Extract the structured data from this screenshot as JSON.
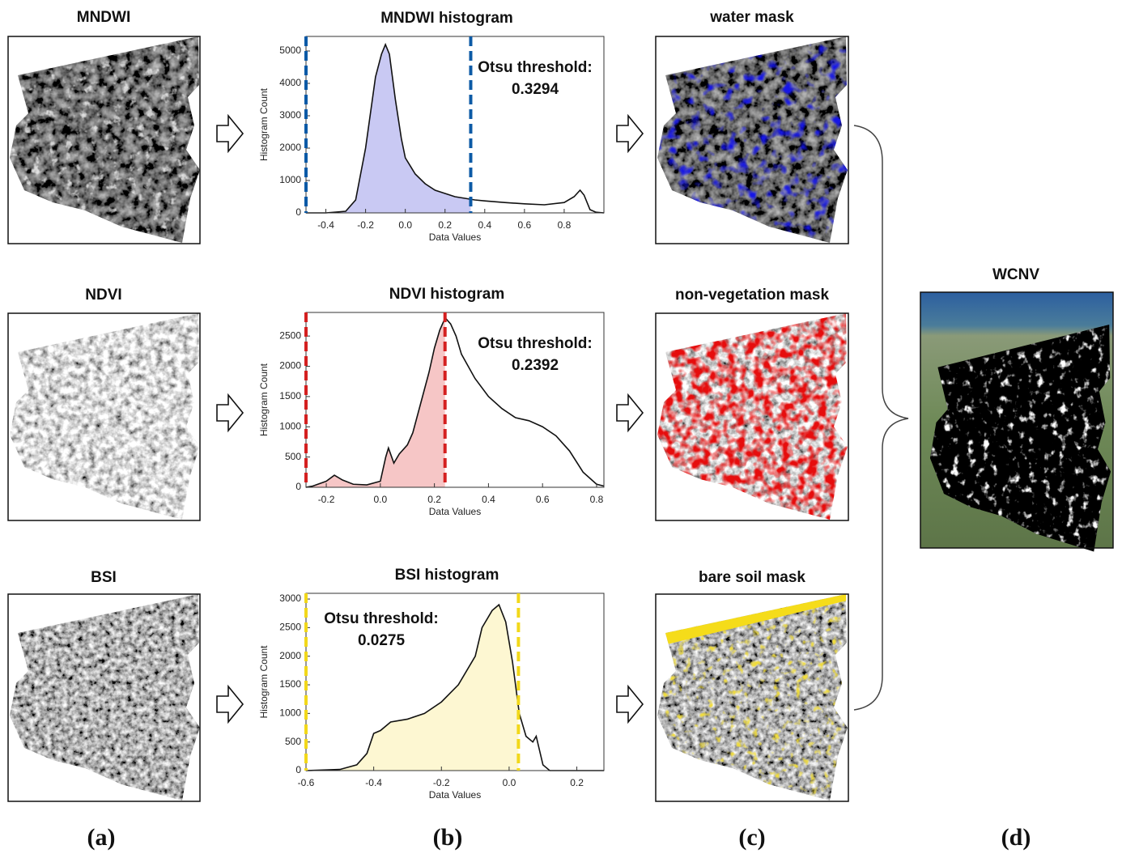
{
  "images": {
    "indices": [
      "MNDWI",
      "NDVI",
      "BSI"
    ],
    "masks": [
      "water mask",
      "non-vegetation mask",
      "bare soil mask"
    ],
    "result": "WCNV"
  },
  "panel_labels": [
    "(a)",
    "(b)",
    "(c)",
    "(d)"
  ],
  "chart_data": [
    {
      "type": "area",
      "title": "MNDWI histogram",
      "xlabel": "Data Values",
      "ylabel": "Histogram Count",
      "annotation": "Otsu threshold:",
      "threshold": 0.3294,
      "color": "#0c5aa6",
      "fill": "#c9c9f3",
      "x": [
        -0.5,
        -0.4,
        -0.3,
        -0.25,
        -0.2,
        -0.15,
        -0.12,
        -0.1,
        -0.08,
        -0.05,
        -0.02,
        0.0,
        0.05,
        0.1,
        0.15,
        0.2,
        0.25,
        0.3,
        0.35,
        0.4,
        0.5,
        0.6,
        0.7,
        0.8,
        0.85,
        0.88,
        0.9,
        0.93,
        0.96,
        1.0
      ],
      "values": [
        0,
        0,
        50,
        400,
        2000,
        4200,
        4900,
        5200,
        4900,
        3500,
        2300,
        1700,
        1200,
        900,
        700,
        600,
        500,
        450,
        400,
        370,
        320,
        280,
        250,
        320,
        500,
        700,
        550,
        100,
        20,
        0
      ],
      "xlim": [
        -0.5,
        1.0
      ],
      "ylim": [
        0,
        5450
      ],
      "xticks": [
        -0.4,
        -0.2,
        {
          "value": 0,
          "label": "0.0"
        },
        0.2,
        0.4,
        0.6,
        0.8
      ],
      "yticks": [
        0,
        1000,
        2000,
        3000,
        4000,
        5000
      ]
    },
    {
      "type": "area",
      "title": "NDVI histogram",
      "xlabel": "Data Values",
      "ylabel": "Histogram Count",
      "annotation": "Otsu threshold:",
      "threshold": 0.2392,
      "color": "#d42020",
      "fill": "#f6c6c6",
      "x": [
        -0.275,
        -0.25,
        -0.2,
        -0.17,
        -0.14,
        -0.1,
        -0.05,
        0.0,
        0.02,
        0.03,
        0.05,
        0.07,
        0.1,
        0.12,
        0.15,
        0.18,
        0.2,
        0.22,
        0.24,
        0.26,
        0.28,
        0.3,
        0.35,
        0.4,
        0.45,
        0.5,
        0.55,
        0.6,
        0.65,
        0.7,
        0.75,
        0.8,
        0.827
      ],
      "values": [
        0,
        20,
        100,
        200,
        120,
        50,
        40,
        100,
        500,
        650,
        400,
        550,
        700,
        900,
        1400,
        1900,
        2300,
        2600,
        2800,
        2700,
        2500,
        2200,
        1800,
        1500,
        1300,
        1150,
        1100,
        1000,
        850,
        600,
        250,
        50,
        20
      ],
      "xlim": [
        -0.275,
        0.827
      ],
      "ylim": [
        0,
        2890
      ],
      "xticks": [
        -0.2,
        {
          "value": 0,
          "label": "0.0"
        },
        0.2,
        0.4,
        0.6,
        0.8
      ],
      "yticks": [
        0,
        500,
        1000,
        1500,
        2000,
        2500
      ]
    },
    {
      "type": "area",
      "title": "BSI histogram",
      "xlabel": "Data Values",
      "ylabel": "Histogram Count",
      "annotation": "Otsu threshold:",
      "threshold": 0.0275,
      "color": "#f2d81a",
      "fill": "#fdf7d2",
      "x": [
        -0.6,
        -0.5,
        -0.45,
        -0.42,
        -0.4,
        -0.38,
        -0.35,
        -0.3,
        -0.25,
        -0.2,
        -0.15,
        -0.1,
        -0.08,
        -0.05,
        -0.03,
        -0.01,
        0.01,
        0.03,
        0.05,
        0.07,
        0.08,
        0.1,
        0.12,
        0.28
      ],
      "values": [
        0,
        20,
        100,
        300,
        650,
        700,
        850,
        900,
        1000,
        1200,
        1500,
        2000,
        2500,
        2800,
        2900,
        2600,
        1900,
        1000,
        600,
        500,
        600,
        100,
        0,
        0
      ],
      "xlim": [
        -0.6,
        0.28
      ],
      "ylim": [
        0,
        3100
      ],
      "xticks": [
        -0.6,
        -0.4,
        -0.2,
        {
          "value": 0,
          "label": "0.0"
        },
        0.2
      ],
      "yticks": [
        0,
        500,
        1000,
        1500,
        2000,
        2500,
        3000
      ]
    }
  ]
}
